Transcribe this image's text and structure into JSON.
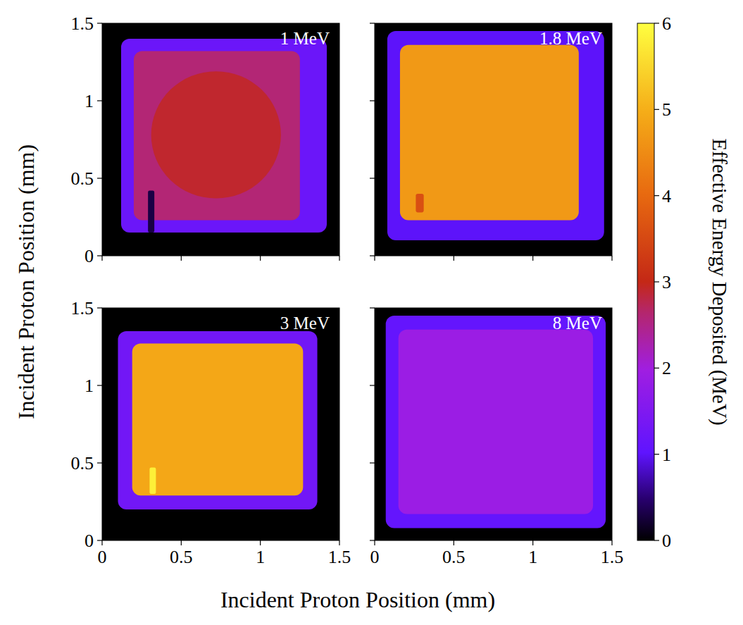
{
  "chart_data": [
    {
      "type": "heatmap",
      "annotation": "1 MeV",
      "xlim": [
        0,
        1.5
      ],
      "ylim": [
        0,
        1.5
      ],
      "xticks": [
        0,
        0.5,
        1,
        1.5
      ],
      "yticks": [
        0,
        0.5,
        1,
        1.5
      ],
      "tick_labels": "y",
      "regions": [
        {
          "shape": "rect",
          "x": [
            0,
            1.5
          ],
          "y": [
            0,
            1.5
          ],
          "value": 0
        },
        {
          "shape": "rect",
          "x": [
            0.12,
            1.42
          ],
          "y": [
            0.15,
            1.4
          ],
          "value": 1.2
        },
        {
          "shape": "rect",
          "x": [
            0.2,
            1.25
          ],
          "y": [
            0.23,
            1.32
          ],
          "value": 2.6
        },
        {
          "shape": "circle",
          "cx": 0.72,
          "cy": 0.78,
          "r": 0.41,
          "value": 2.9
        },
        {
          "shape": "rect",
          "x": [
            0.29,
            0.33
          ],
          "y": [
            0.15,
            0.42
          ],
          "value": 0.3
        }
      ]
    },
    {
      "type": "heatmap",
      "annotation": "1.8 MeV",
      "xlim": [
        0,
        1.5
      ],
      "ylim": [
        0,
        1.5
      ],
      "xticks": [
        0,
        0.5,
        1,
        1.5
      ],
      "yticks": [
        0,
        0.5,
        1,
        1.5
      ],
      "tick_labels": false,
      "regions": [
        {
          "shape": "rect",
          "x": [
            0,
            1.5
          ],
          "y": [
            0,
            1.5
          ],
          "value": 0
        },
        {
          "shape": "rect",
          "x": [
            0.08,
            1.45
          ],
          "y": [
            0.1,
            1.45
          ],
          "value": 1.0
        },
        {
          "shape": "rect",
          "x": [
            0.16,
            1.29
          ],
          "y": [
            0.23,
            1.36
          ],
          "value": 4.7
        },
        {
          "shape": "rect",
          "x": [
            0.26,
            0.31
          ],
          "y": [
            0.28,
            0.4
          ],
          "value": 3.6
        }
      ]
    },
    {
      "type": "heatmap",
      "annotation": "3 MeV",
      "xlim": [
        0,
        1.5
      ],
      "ylim": [
        0,
        1.5
      ],
      "xticks": [
        0,
        0.5,
        1,
        1.5
      ],
      "yticks": [
        0,
        0.5,
        1,
        1.5
      ],
      "regions": [
        {
          "shape": "rect",
          "x": [
            0,
            1.5
          ],
          "y": [
            0,
            1.5
          ],
          "value": 0
        },
        {
          "shape": "rect",
          "x": [
            0.1,
            1.36
          ],
          "y": [
            0.2,
            1.35
          ],
          "value": 1.3
        },
        {
          "shape": "rect",
          "x": [
            0.19,
            1.27
          ],
          "y": [
            0.29,
            1.27
          ],
          "value": 4.9
        },
        {
          "shape": "rect",
          "x": [
            0.3,
            0.34
          ],
          "y": [
            0.3,
            0.47
          ],
          "value": 5.8
        }
      ]
    },
    {
      "type": "heatmap",
      "annotation": "8 MeV",
      "xlim": [
        0,
        1.5
      ],
      "ylim": [
        0,
        1.5
      ],
      "xticks": [
        0,
        0.5,
        1,
        1.5
      ],
      "yticks": [
        0,
        0.5,
        1,
        1.5
      ],
      "tick_labels": "x",
      "regions": [
        {
          "shape": "rect",
          "x": [
            0,
            1.5
          ],
          "y": [
            0,
            1.5
          ],
          "value": 0
        },
        {
          "shape": "rect",
          "x": [
            0.07,
            1.46
          ],
          "y": [
            0.08,
            1.45
          ],
          "value": 1.1
        },
        {
          "shape": "rect",
          "x": [
            0.15,
            1.38
          ],
          "y": [
            0.17,
            1.36
          ],
          "value": 1.9
        }
      ]
    }
  ],
  "x_label": "Incident Proton Position (mm)",
  "y_label": "Incident Proton Position (mm)",
  "colorbar": {
    "label": "Effective Energy Deposited (MeV)",
    "range": [
      0,
      6
    ],
    "ticks": [
      0,
      1,
      2,
      3,
      4,
      5,
      6
    ]
  }
}
